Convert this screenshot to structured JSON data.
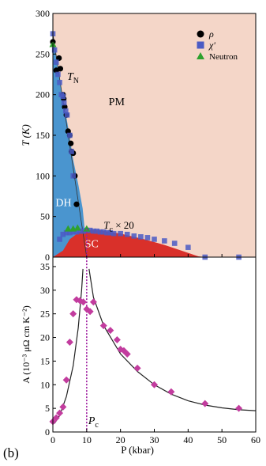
{
  "panel_label": "(b)",
  "chart_data": [
    {
      "type": "scatter",
      "xlabel": "",
      "ylabel": "T (K)",
      "xlim": [
        0,
        60
      ],
      "ylim": [
        0,
        300
      ],
      "yticks": [
        0,
        50,
        100,
        150,
        200,
        250,
        300
      ],
      "grid": false,
      "legend_position": "top-right",
      "colors": {
        "background_region": "#f4d6c8",
        "DH_region": "#4a95cf",
        "SC_region": "#d9302a",
        "rho": "#000000",
        "chi": "#4a5bc4",
        "neutron": "#2ea12e",
        "boundary_line": "#333333"
      },
      "legend": [
        {
          "label": "ρ",
          "marker": "circle"
        },
        {
          "label": "χ'",
          "marker": "square"
        },
        {
          "label": "Neutron",
          "marker": "triangle"
        }
      ],
      "annotations": {
        "TN": "T",
        "TN_sub": "N",
        "PM": "PM",
        "DH": "DH",
        "SC": "SC",
        "Tc": "T",
        "Tc_sub": "c",
        "Tc_suffix": " × 20"
      },
      "regions": {
        "DH": [
          [
            0,
            275
          ],
          [
            1.5,
            230
          ],
          [
            3,
            195
          ],
          [
            4.5,
            160
          ],
          [
            6,
            120
          ],
          [
            7.5,
            90
          ],
          [
            8.8,
            60
          ],
          [
            9.5,
            30
          ],
          [
            10,
            0
          ],
          [
            0,
            0
          ]
        ],
        "SC": [
          [
            3,
            8
          ],
          [
            5,
            22
          ],
          [
            7.5,
            30
          ],
          [
            10,
            34
          ],
          [
            14,
            33
          ],
          [
            20,
            29
          ],
          [
            27,
            22
          ],
          [
            33,
            15
          ],
          [
            38,
            8
          ],
          [
            43,
            1
          ],
          [
            45,
            0
          ],
          [
            0,
            0
          ]
        ]
      },
      "TN_line": [
        [
          0,
          275
        ],
        [
          10,
          0
        ]
      ],
      "series": [
        {
          "name": "ρ",
          "marker": "circle",
          "x": [
            0,
            1,
            1.8,
            2.2,
            3,
            3.2,
            3.5,
            4,
            4.5,
            5,
            5.3,
            5.5,
            6,
            6.5,
            7
          ],
          "y": [
            265,
            230,
            245,
            232,
            200,
            195,
            185,
            175,
            155,
            150,
            140,
            130,
            128,
            100,
            65
          ]
        },
        {
          "name": "χ'",
          "marker": "square",
          "x": [
            0,
            0.5,
            1,
            1.5,
            2,
            2.5,
            3,
            3.3,
            3.8,
            4.2,
            5,
            5.5,
            6,
            2,
            3,
            4,
            5,
            6,
            7,
            8,
            9,
            10,
            11,
            12,
            13,
            14,
            15,
            16,
            17,
            18,
            20,
            22,
            24,
            26,
            28,
            30,
            33,
            36,
            40,
            45,
            55
          ],
          "y": [
            275,
            255,
            240,
            225,
            215,
            200,
            198,
            190,
            180,
            175,
            150,
            130,
            100,
            22,
            28,
            30,
            30,
            31,
            31,
            32,
            32,
            33,
            33,
            32,
            32,
            31,
            31,
            30,
            30,
            29,
            29,
            28,
            26,
            25,
            24,
            22,
            20,
            17,
            12,
            0,
            0
          ]
        },
        {
          "name": "Neutron",
          "marker": "triangle",
          "x": [
            0,
            4.5,
            6,
            7.3,
            10
          ],
          "y": [
            262,
            35,
            35,
            36,
            35
          ]
        }
      ]
    },
    {
      "type": "scatter",
      "xlabel": "P (kbar)",
      "ylabel": "A (10⁻³ μΩ cm K⁻²)",
      "xlim": [
        0,
        60
      ],
      "ylim": [
        0,
        37
      ],
      "xticks": [
        0,
        10,
        20,
        30,
        40,
        50,
        60
      ],
      "yticks": [
        0,
        5,
        10,
        15,
        20,
        25,
        30,
        35
      ],
      "grid": false,
      "critical_pressure": 10,
      "critical_label": "P",
      "critical_label_sub": "c",
      "colors": {
        "points": "#c23c9e",
        "fit": "#222222",
        "critical_line": "#a020a0"
      },
      "series": [
        {
          "name": "",
          "marker": "diamond",
          "x": [
            0,
            1,
            2,
            3,
            4,
            5,
            6,
            7,
            8,
            9,
            10,
            11,
            12,
            15,
            17,
            19,
            20,
            21,
            22,
            25,
            30,
            35,
            45,
            55
          ],
          "y": [
            2.2,
            3,
            4,
            5.3,
            11,
            19,
            25,
            28,
            27.8,
            27.5,
            26,
            25.5,
            27.5,
            22.5,
            21.5,
            19.5,
            17.5,
            17.2,
            16.5,
            13.5,
            10,
            8.5,
            6,
            5
          ]
        }
      ],
      "fit_left": [
        [
          0.5,
          1.8
        ],
        [
          2,
          3.5
        ],
        [
          4,
          7.5
        ],
        [
          6,
          14
        ],
        [
          7.5,
          22
        ],
        [
          8.5,
          30
        ],
        [
          8.9,
          34.5
        ]
      ],
      "fit_right": [
        [
          10.7,
          34.5
        ],
        [
          12,
          28.5
        ],
        [
          15,
          22.5
        ],
        [
          20,
          16.5
        ],
        [
          25,
          12.8
        ],
        [
          30,
          10
        ],
        [
          35,
          8
        ],
        [
          40,
          6.6
        ],
        [
          45,
          5.7
        ],
        [
          50,
          5.1
        ],
        [
          55,
          4.7
        ],
        [
          60,
          4.5
        ]
      ]
    }
  ]
}
